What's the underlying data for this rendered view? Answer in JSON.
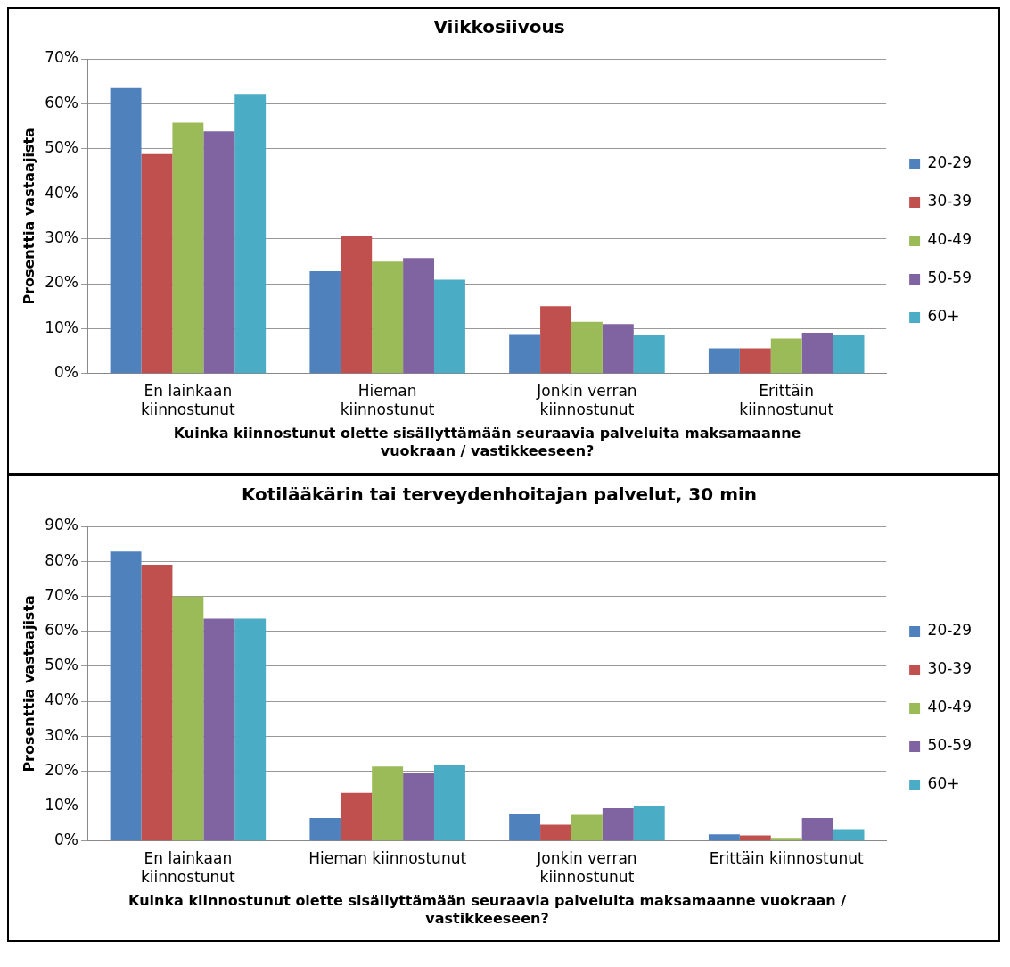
{
  "chart_data": [
    {
      "type": "bar",
      "title": "Viikkosiivous",
      "xlabel": "Kuinka kiinnostunut olette sisällyttämään seuraavia palveluita maksamaanne vuokraan / vastikkeeseen?",
      "ylabel": "Prosenttia vastaajista",
      "categories": [
        "En lainkaan kiinnostunut",
        "Hieman kiinnostunut",
        "Jonkin verran kiinnostunut",
        "Erittäin kiinnostunut"
      ],
      "ylim": [
        0,
        70
      ],
      "yticks": [
        {
          "value": 0,
          "label": "0%"
        },
        {
          "value": 10,
          "label": "10%"
        },
        {
          "value": 20,
          "label": "20%"
        },
        {
          "value": 30,
          "label": "30%"
        },
        {
          "value": 40,
          "label": "40%"
        },
        {
          "value": 50,
          "label": "50%"
        },
        {
          "value": 60,
          "label": "60%"
        },
        {
          "value": 70,
          "label": "70%"
        }
      ],
      "grid": "y",
      "legend": "right",
      "series": [
        {
          "name": "20-29",
          "color": "#4f81bd",
          "values": [
            63.5,
            22.8,
            8.8,
            5.6
          ]
        },
        {
          "name": "30-39",
          "color": "#c0504d",
          "values": [
            48.8,
            30.6,
            15.0,
            5.6
          ]
        },
        {
          "name": "40-49",
          "color": "#9bbb59",
          "values": [
            55.8,
            24.9,
            11.5,
            7.8
          ]
        },
        {
          "name": "50-59",
          "color": "#8064a2",
          "values": [
            53.9,
            25.7,
            11.0,
            9.1
          ]
        },
        {
          "name": "60+",
          "color": "#4bacc6",
          "values": [
            62.2,
            20.9,
            8.6,
            8.6
          ]
        }
      ]
    },
    {
      "type": "bar",
      "title": "Kotilääkärin tai terveydenhoitajan palvelut, 30 min",
      "xlabel": "Kuinka kiinnostunut olette sisällyttämään seuraavia palveluita maksamaanne vuokraan / vastikkeeseen?",
      "ylabel": "Prosenttia vastaajista",
      "categories": [
        "En lainkaan kiinnostunut",
        "Hieman kiinnostunut",
        "Jonkin verran kiinnostunut",
        "Erittäin kiinnostunut"
      ],
      "ylim": [
        0,
        90
      ],
      "yticks": [
        {
          "value": 0,
          "label": "0%"
        },
        {
          "value": 10,
          "label": "10%"
        },
        {
          "value": 20,
          "label": "20%"
        },
        {
          "value": 30,
          "label": "30%"
        },
        {
          "value": 40,
          "label": "40%"
        },
        {
          "value": 50,
          "label": "50%"
        },
        {
          "value": 60,
          "label": "60%"
        },
        {
          "value": 70,
          "label": "70%"
        },
        {
          "value": 80,
          "label": "80%"
        },
        {
          "value": 90,
          "label": "90%"
        }
      ],
      "grid": "y",
      "legend": "right",
      "series": [
        {
          "name": "20-29",
          "color": "#4f81bd",
          "values": [
            82.8,
            6.6,
            7.8,
            1.9
          ]
        },
        {
          "name": "30-39",
          "color": "#c0504d",
          "values": [
            79.0,
            13.8,
            4.7,
            1.6
          ]
        },
        {
          "name": "40-49",
          "color": "#9bbb59",
          "values": [
            69.9,
            21.3,
            7.5,
            0.9
          ]
        },
        {
          "name": "50-59",
          "color": "#8064a2",
          "values": [
            63.6,
            19.4,
            9.4,
            6.6
          ]
        },
        {
          "name": "60+",
          "color": "#4bacc6",
          "values": [
            63.6,
            21.9,
            10.0,
            3.4
          ]
        }
      ]
    }
  ]
}
